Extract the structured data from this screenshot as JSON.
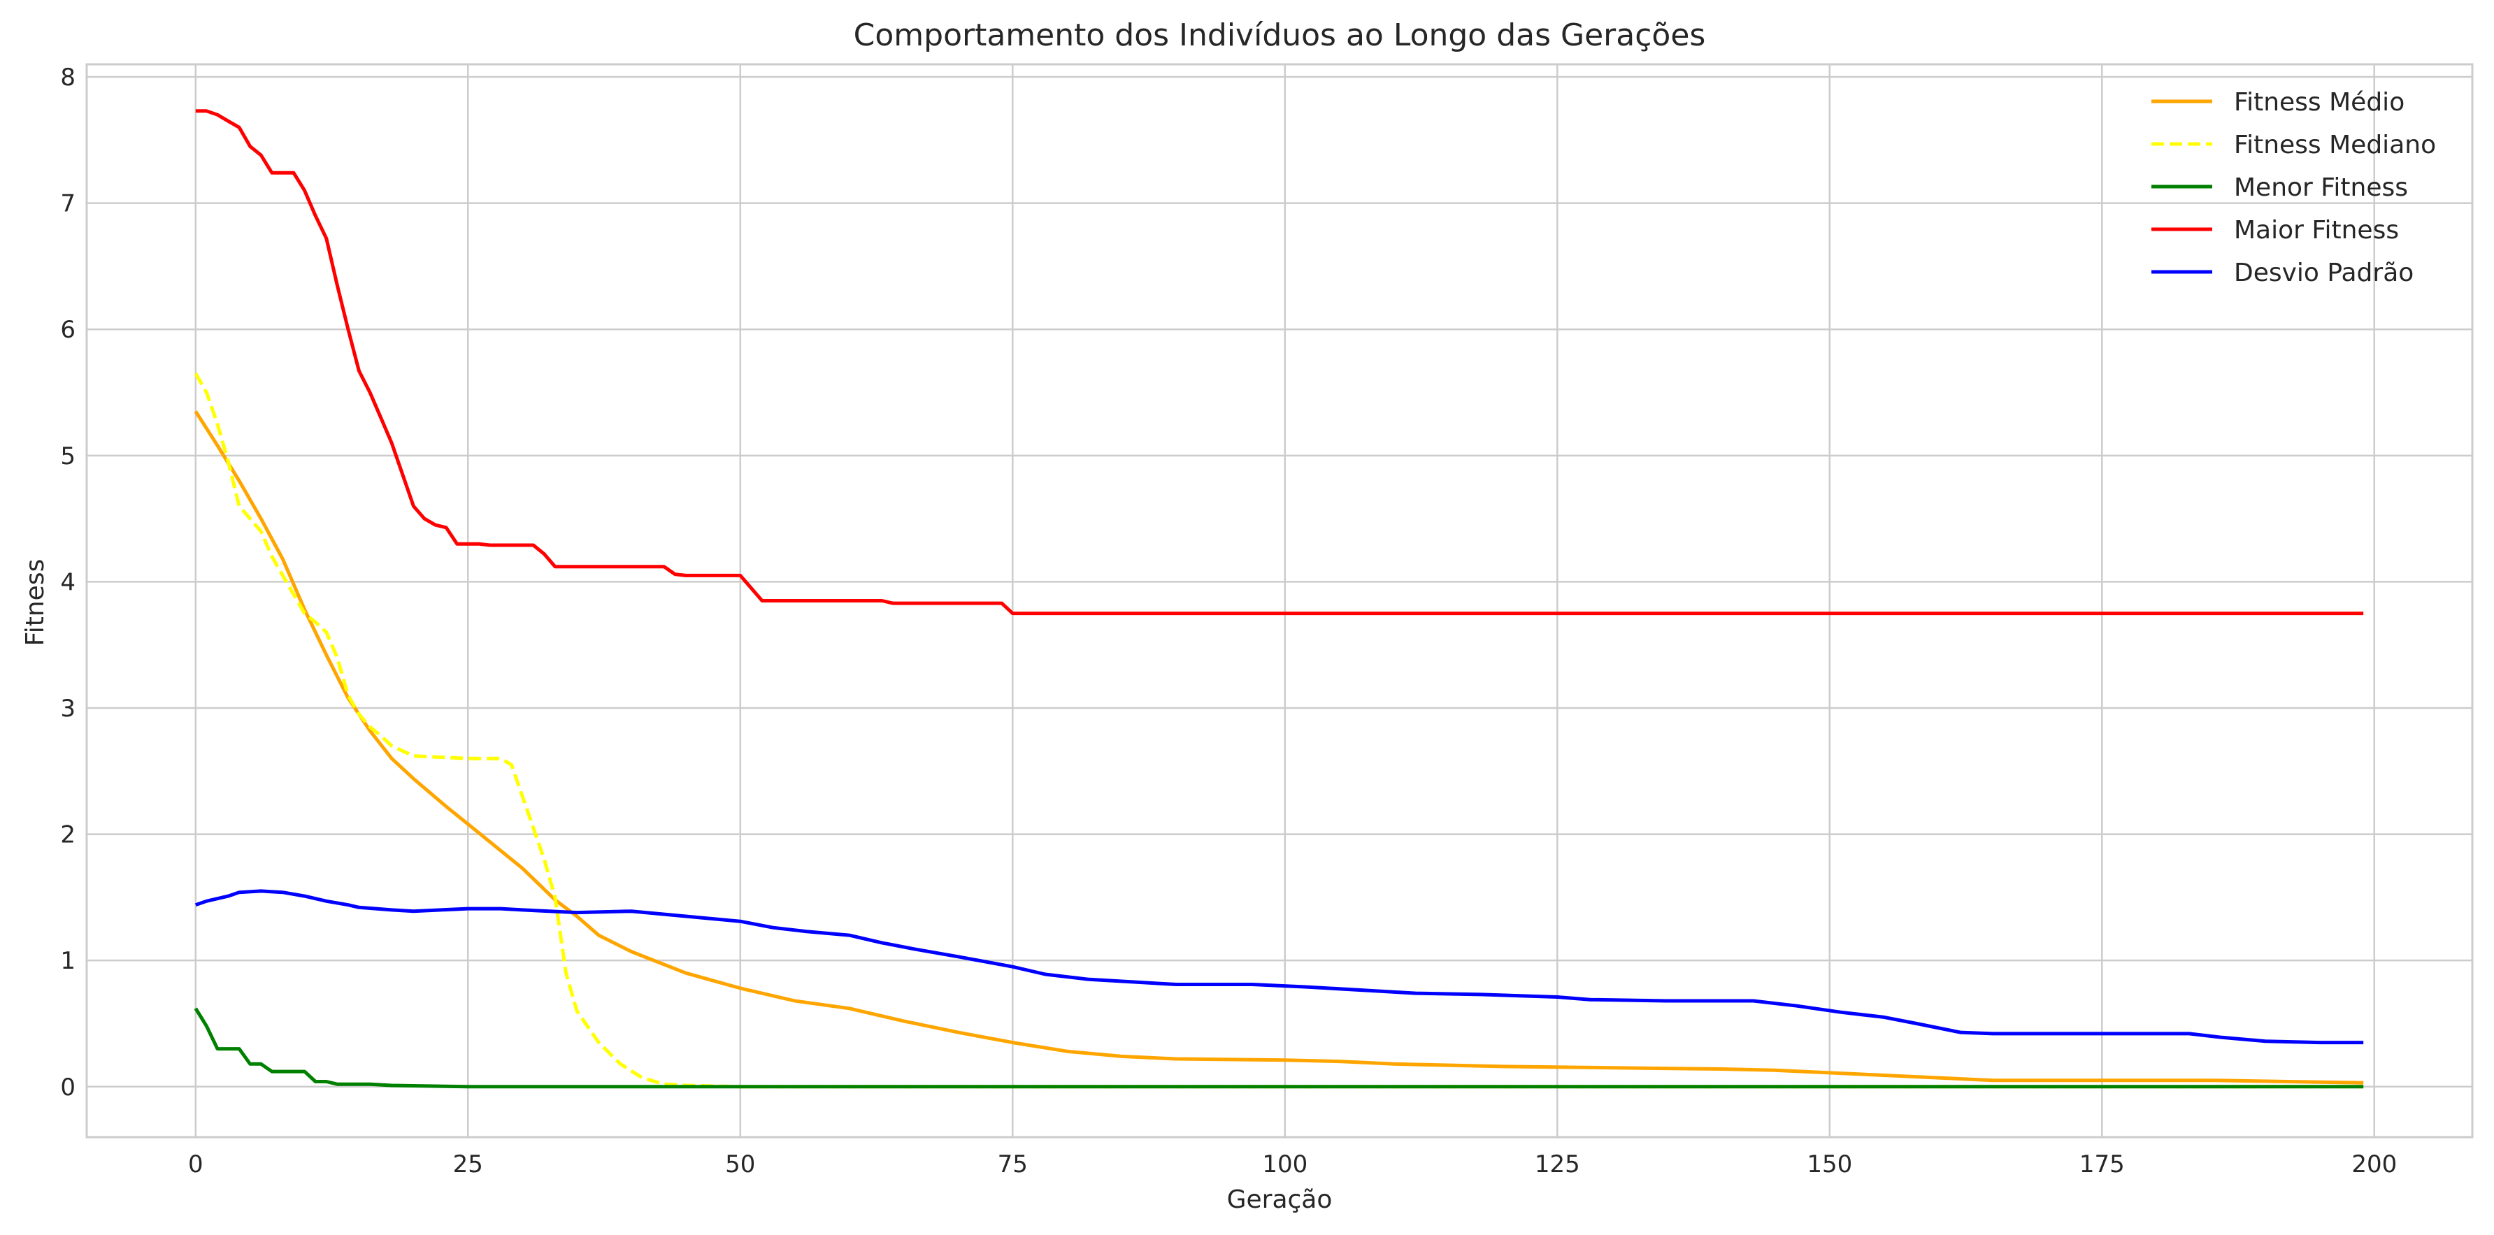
{
  "chart_data": {
    "type": "line",
    "title": "Comportamento dos Indivíduos ao Longo das Gerações",
    "xlabel": "Geração",
    "ylabel": "Fitness",
    "xlim": [
      -10,
      209
    ],
    "ylim": [
      -0.4,
      8.1
    ],
    "xticks": [
      0,
      25,
      50,
      75,
      100,
      125,
      150,
      175,
      200
    ],
    "yticks": [
      0,
      1,
      2,
      3,
      4,
      5,
      6,
      7,
      8
    ],
    "grid": true,
    "legend_position": "upper right",
    "series": [
      {
        "name": "Fitness Médio",
        "color": "#FFA500",
        "dash": "solid",
        "points": [
          [
            0,
            5.35
          ],
          [
            2,
            5.08
          ],
          [
            4,
            4.8
          ],
          [
            6,
            4.5
          ],
          [
            8,
            4.18
          ],
          [
            10,
            3.78
          ],
          [
            12,
            3.42
          ],
          [
            14,
            3.08
          ],
          [
            16,
            2.82
          ],
          [
            18,
            2.6
          ],
          [
            20,
            2.44
          ],
          [
            23,
            2.22
          ],
          [
            25,
            2.08
          ],
          [
            30,
            1.73
          ],
          [
            33,
            1.48
          ],
          [
            35,
            1.35
          ],
          [
            37,
            1.2
          ],
          [
            40,
            1.07
          ],
          [
            45,
            0.9
          ],
          [
            50,
            0.78
          ],
          [
            55,
            0.68
          ],
          [
            60,
            0.62
          ],
          [
            65,
            0.52
          ],
          [
            70,
            0.43
          ],
          [
            75,
            0.35
          ],
          [
            80,
            0.28
          ],
          [
            85,
            0.24
          ],
          [
            90,
            0.22
          ],
          [
            100,
            0.21
          ],
          [
            105,
            0.2
          ],
          [
            110,
            0.18
          ],
          [
            120,
            0.16
          ],
          [
            130,
            0.15
          ],
          [
            140,
            0.14
          ],
          [
            145,
            0.13
          ],
          [
            150,
            0.11
          ],
          [
            155,
            0.09
          ],
          [
            160,
            0.07
          ],
          [
            165,
            0.05
          ],
          [
            175,
            0.05
          ],
          [
            185,
            0.05
          ],
          [
            199,
            0.03
          ]
        ]
      },
      {
        "name": "Fitness Mediano",
        "color": "#FFFF00",
        "dash": "dashed",
        "points": [
          [
            0,
            5.65
          ],
          [
            1,
            5.5
          ],
          [
            2,
            5.25
          ],
          [
            3,
            4.95
          ],
          [
            4,
            4.6
          ],
          [
            5,
            4.5
          ],
          [
            6,
            4.4
          ],
          [
            7,
            4.2
          ],
          [
            8,
            4.05
          ],
          [
            9,
            3.9
          ],
          [
            10,
            3.75
          ],
          [
            11,
            3.68
          ],
          [
            12,
            3.6
          ],
          [
            13,
            3.4
          ],
          [
            14,
            3.1
          ],
          [
            15,
            2.95
          ],
          [
            16,
            2.85
          ],
          [
            17,
            2.78
          ],
          [
            18,
            2.7
          ],
          [
            20,
            2.62
          ],
          [
            25,
            2.6
          ],
          [
            28,
            2.6
          ],
          [
            29,
            2.55
          ],
          [
            30,
            2.3
          ],
          [
            32,
            1.8
          ],
          [
            33,
            1.5
          ],
          [
            34,
            0.9
          ],
          [
            35,
            0.6
          ],
          [
            37,
            0.35
          ],
          [
            39,
            0.18
          ],
          [
            41,
            0.07
          ],
          [
            43,
            0.02
          ],
          [
            45,
            0.01
          ],
          [
            50,
            0.0
          ],
          [
            199,
            0.0
          ]
        ]
      },
      {
        "name": "Menor Fitness",
        "color": "#008000",
        "dash": "solid",
        "points": [
          [
            0,
            0.62
          ],
          [
            1,
            0.48
          ],
          [
            2,
            0.3
          ],
          [
            3,
            0.3
          ],
          [
            4,
            0.3
          ],
          [
            5,
            0.18
          ],
          [
            6,
            0.18
          ],
          [
            7,
            0.12
          ],
          [
            8,
            0.12
          ],
          [
            9,
            0.12
          ],
          [
            10,
            0.12
          ],
          [
            11,
            0.04
          ],
          [
            12,
            0.04
          ],
          [
            13,
            0.02
          ],
          [
            16,
            0.02
          ],
          [
            18,
            0.01
          ],
          [
            25,
            0.0
          ],
          [
            199,
            0.0
          ]
        ]
      },
      {
        "name": "Maior Fitness",
        "color": "#FF0000",
        "dash": "solid",
        "points": [
          [
            0,
            7.73
          ],
          [
            1,
            7.73
          ],
          [
            2,
            7.7
          ],
          [
            3,
            7.65
          ],
          [
            4,
            7.6
          ],
          [
            5,
            7.45
          ],
          [
            6,
            7.38
          ],
          [
            7,
            7.24
          ],
          [
            8,
            7.24
          ],
          [
            9,
            7.24
          ],
          [
            10,
            7.1
          ],
          [
            11,
            6.9
          ],
          [
            12,
            6.72
          ],
          [
            13,
            6.35
          ],
          [
            14,
            6.0
          ],
          [
            15,
            5.67
          ],
          [
            16,
            5.5
          ],
          [
            17,
            5.3
          ],
          [
            18,
            5.1
          ],
          [
            19,
            4.85
          ],
          [
            20,
            4.6
          ],
          [
            21,
            4.5
          ],
          [
            22,
            4.45
          ],
          [
            23,
            4.43
          ],
          [
            24,
            4.3
          ],
          [
            25,
            4.3
          ],
          [
            26,
            4.3
          ],
          [
            27,
            4.29
          ],
          [
            28,
            4.29
          ],
          [
            31,
            4.29
          ],
          [
            32,
            4.22
          ],
          [
            33,
            4.12
          ],
          [
            40,
            4.12
          ],
          [
            43,
            4.12
          ],
          [
            44,
            4.06
          ],
          [
            45,
            4.05
          ],
          [
            50,
            4.05
          ],
          [
            52,
            3.85
          ],
          [
            55,
            3.85
          ],
          [
            63,
            3.85
          ],
          [
            64,
            3.83
          ],
          [
            70,
            3.83
          ],
          [
            74,
            3.83
          ],
          [
            75,
            3.75
          ],
          [
            199,
            3.75
          ]
        ]
      },
      {
        "name": "Desvio Padrão",
        "color": "#0000FF",
        "dash": "solid",
        "points": [
          [
            0,
            1.44
          ],
          [
            1,
            1.47
          ],
          [
            2,
            1.49
          ],
          [
            3,
            1.51
          ],
          [
            4,
            1.54
          ],
          [
            6,
            1.55
          ],
          [
            8,
            1.54
          ],
          [
            10,
            1.51
          ],
          [
            12,
            1.47
          ],
          [
            14,
            1.44
          ],
          [
            15,
            1.42
          ],
          [
            18,
            1.4
          ],
          [
            20,
            1.39
          ],
          [
            25,
            1.41
          ],
          [
            28,
            1.41
          ],
          [
            30,
            1.4
          ],
          [
            35,
            1.38
          ],
          [
            40,
            1.39
          ],
          [
            45,
            1.35
          ],
          [
            50,
            1.31
          ],
          [
            53,
            1.26
          ],
          [
            56,
            1.23
          ],
          [
            60,
            1.2
          ],
          [
            63,
            1.14
          ],
          [
            66,
            1.09
          ],
          [
            70,
            1.03
          ],
          [
            75,
            0.95
          ],
          [
            78,
            0.89
          ],
          [
            82,
            0.85
          ],
          [
            90,
            0.81
          ],
          [
            97,
            0.81
          ],
          [
            102,
            0.79
          ],
          [
            108,
            0.76
          ],
          [
            112,
            0.74
          ],
          [
            118,
            0.73
          ],
          [
            125,
            0.71
          ],
          [
            128,
            0.69
          ],
          [
            135,
            0.68
          ],
          [
            143,
            0.68
          ],
          [
            147,
            0.64
          ],
          [
            151,
            0.59
          ],
          [
            155,
            0.55
          ],
          [
            158,
            0.5
          ],
          [
            162,
            0.43
          ],
          [
            165,
            0.42
          ],
          [
            170,
            0.42
          ],
          [
            183,
            0.42
          ],
          [
            186,
            0.39
          ],
          [
            190,
            0.36
          ],
          [
            195,
            0.35
          ],
          [
            199,
            0.35
          ]
        ]
      }
    ]
  }
}
